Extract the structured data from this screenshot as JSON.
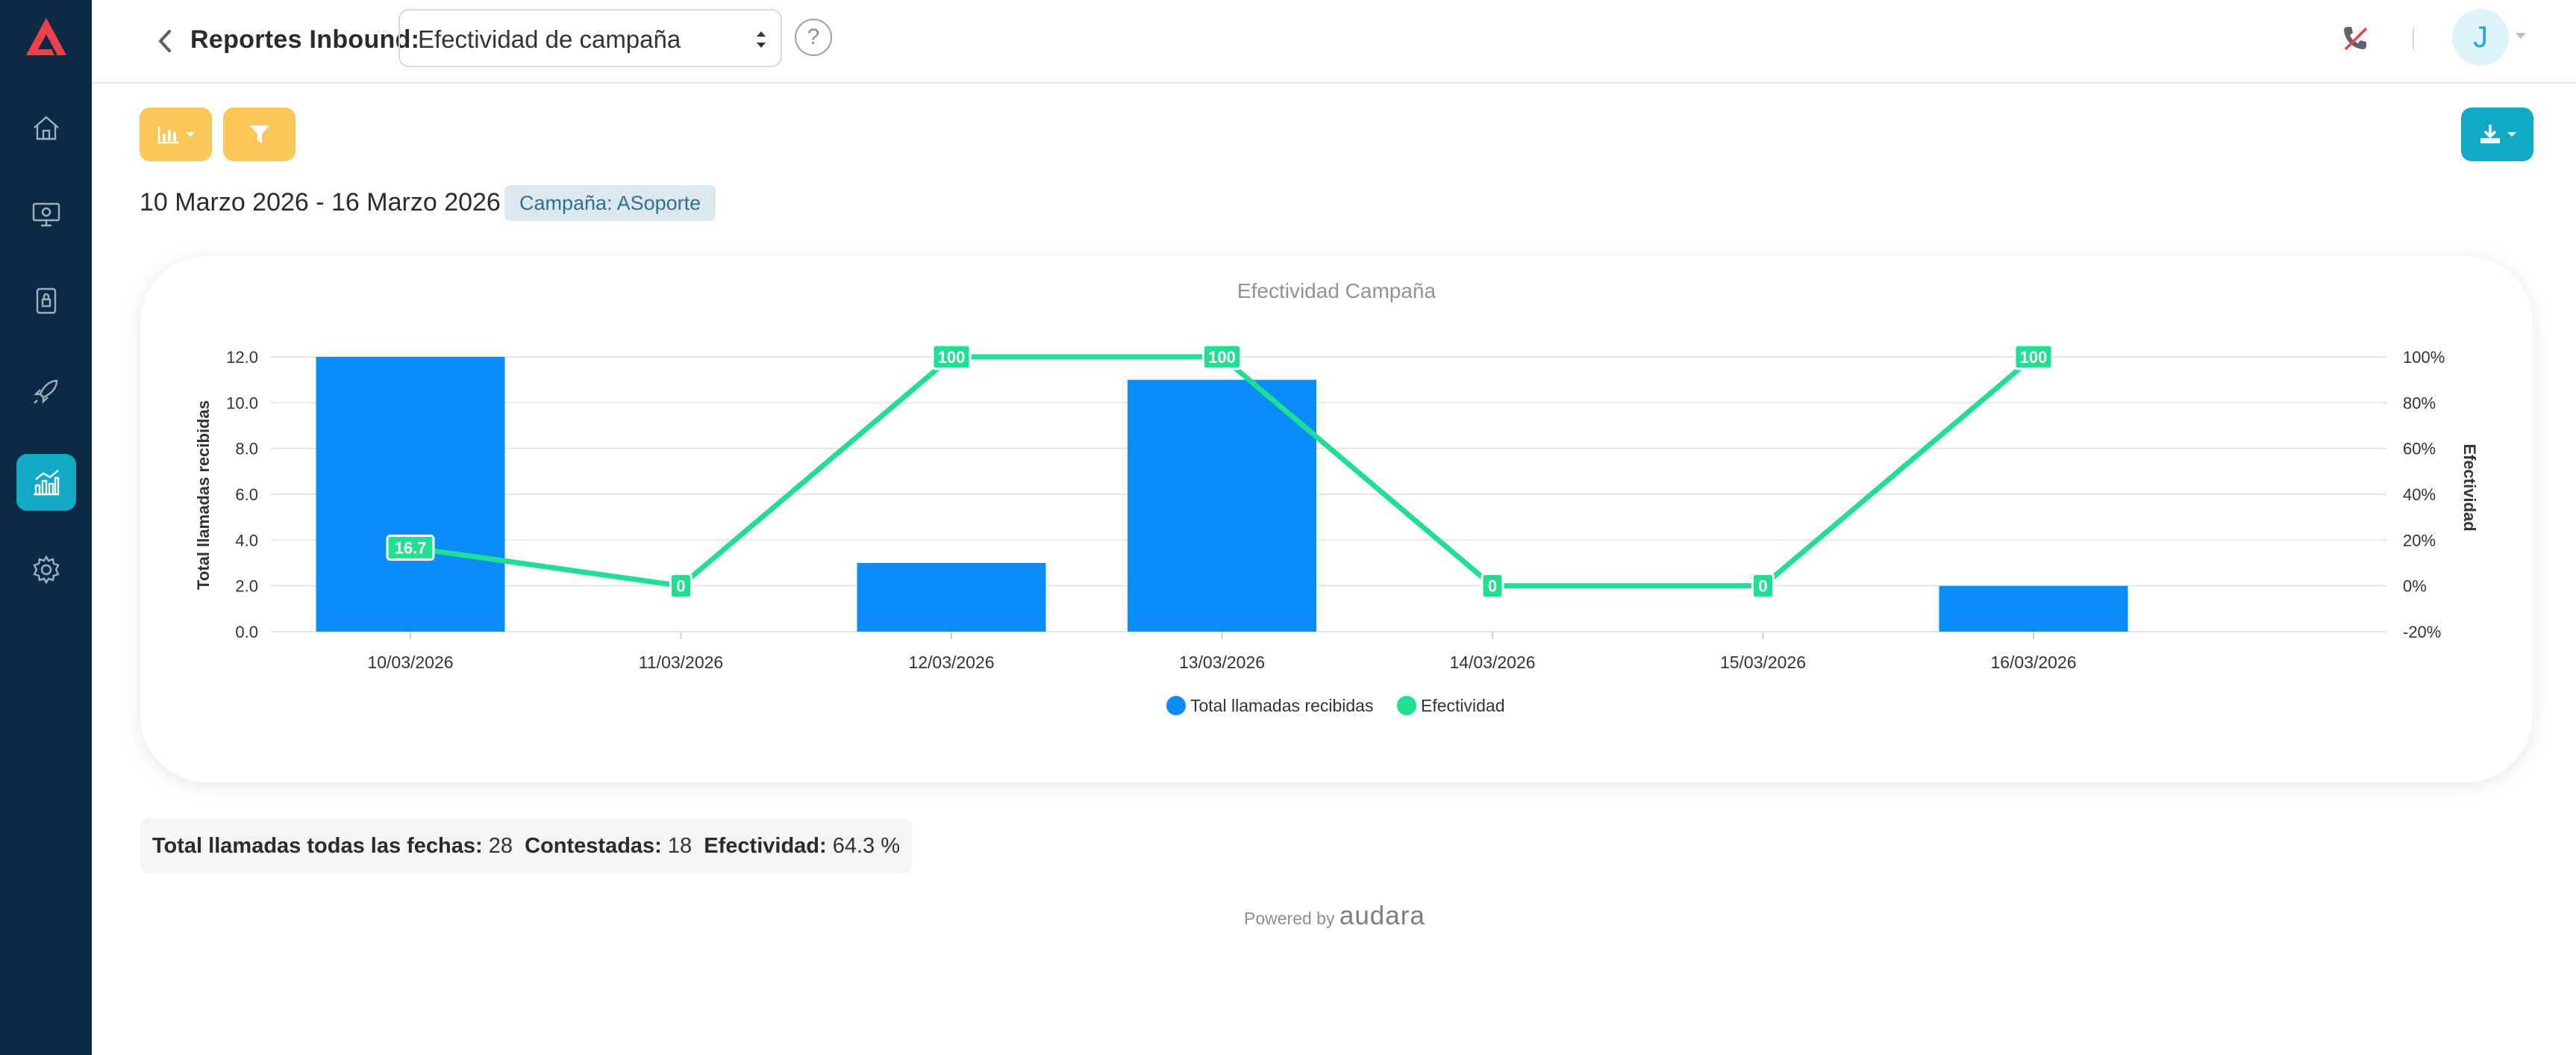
{
  "sidebar": {
    "items": [
      {
        "icon": "home-icon"
      },
      {
        "icon": "monitor-icon"
      },
      {
        "icon": "archive-icon"
      },
      {
        "icon": "rocket-icon"
      },
      {
        "icon": "reports-chart-icon",
        "active": true
      },
      {
        "icon": "gear-icon"
      }
    ]
  },
  "header": {
    "title": "Reportes Inbound:",
    "report_select": "Efectividad de campaña",
    "help": "?",
    "avatar_letter": "J"
  },
  "filters": {
    "date_range": "10 Marzo 2026 - 16 Marzo 2026",
    "campaign_badge": "Campaña: ASoporte"
  },
  "chart_data": {
    "type": "bar",
    "title": "Efectividad Campaña",
    "categories": [
      "10/03/2026",
      "11/03/2026",
      "12/03/2026",
      "13/03/2026",
      "14/03/2026",
      "15/03/2026",
      "16/03/2026"
    ],
    "series": [
      {
        "name": "Total llamadas recibidas",
        "type": "bar",
        "values": [
          12,
          0,
          3,
          11,
          0,
          0,
          2
        ],
        "color": "#0a8df6",
        "axis": "left"
      },
      {
        "name": "Efectividad",
        "type": "line",
        "values": [
          16.7,
          0,
          100,
          100,
          0,
          0,
          100
        ],
        "color": "#20df92",
        "axis": "right",
        "labels": [
          "16.7",
          "0",
          "100",
          "100",
          "0",
          "0",
          "100"
        ]
      }
    ],
    "ylabel": "Total llamadas recibidas",
    "ylabel_right": "Efectividad",
    "ylim": [
      0,
      12
    ],
    "yticks": [
      "0.0",
      "2.0",
      "4.0",
      "6.0",
      "8.0",
      "10.0",
      "12.0"
    ],
    "ylim_right": [
      -20,
      100
    ],
    "yticks_right": [
      "-20%",
      "0%",
      "20%",
      "40%",
      "60%",
      "80%",
      "100%"
    ],
    "grid": true,
    "legend": "bottom-center"
  },
  "summary": {
    "total_label": "Total llamadas todas las fechas:",
    "total_value": "28",
    "answered_label": "Contestadas:",
    "answered_value": "18",
    "effect_label": "Efectividad:",
    "effect_value": "64.3 %"
  },
  "footer": {
    "powered_by": "Powered by",
    "brand": "audara"
  }
}
